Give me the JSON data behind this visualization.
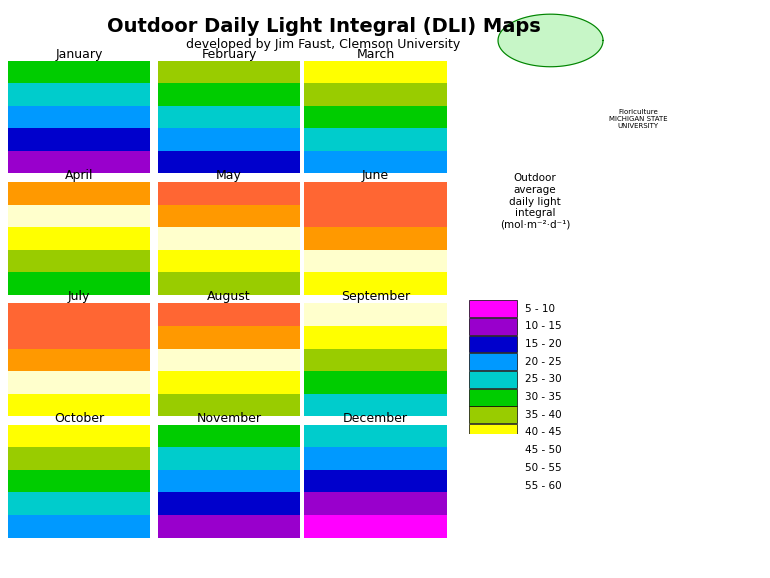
{
  "title": "Outdoor Daily Light Integral (DLI) Maps",
  "subtitle": "developed by Jim Faust, Clemson University",
  "legend_title": "Outdoor\naverage\ndaily light\nintegral\n(mol·m⁻²·d⁻¹)",
  "months": [
    "January",
    "February",
    "March",
    "April",
    "May",
    "June",
    "July",
    "August",
    "September",
    "October",
    "November",
    "December"
  ],
  "dli_ranges": [
    "5 - 10",
    "10 - 15",
    "15 - 20",
    "20 - 25",
    "25 - 30",
    "30 - 35",
    "35 - 40",
    "40 - 45",
    "45 - 50",
    "50 - 55",
    "55 - 60"
  ],
  "dli_colors": [
    "#ff00ff",
    "#9900cc",
    "#0000cc",
    "#0099ff",
    "#00cccc",
    "#00cc00",
    "#99cc00",
    "#ffff00",
    "#ffffcc",
    "#ff9900",
    "#ff6633"
  ],
  "background_color": "#ffffff",
  "title_fontsize": 14,
  "subtitle_fontsize": 9,
  "month_fontsize": 9,
  "legend_fontsize": 8,
  "month_dli_data": {
    "January": {
      "north": 10,
      "upper_mid": 15,
      "lower_mid": 20,
      "south": 25,
      "florida": 30,
      "southwest": 25,
      "northwest": 10
    },
    "February": {
      "north": 15,
      "upper_mid": 20,
      "lower_mid": 25,
      "south": 30,
      "florida": 35,
      "southwest": 30,
      "northwest": 15
    },
    "March": {
      "north": 20,
      "upper_mid": 25,
      "lower_mid": 30,
      "south": 35,
      "florida": 40,
      "southwest": 35,
      "northwest": 25
    },
    "April": {
      "north": 30,
      "upper_mid": 35,
      "lower_mid": 40,
      "south": 45,
      "florida": 45,
      "southwest": 45,
      "northwest": 35
    },
    "May": {
      "north": 35,
      "upper_mid": 40,
      "lower_mid": 45,
      "south": 50,
      "florida": 50,
      "southwest": 55,
      "northwest": 40
    },
    "June": {
      "north": 40,
      "upper_mid": 45,
      "lower_mid": 50,
      "south": 55,
      "florida": 55,
      "southwest": 60,
      "northwest": 45
    },
    "July": {
      "north": 40,
      "upper_mid": 45,
      "lower_mid": 50,
      "south": 55,
      "florida": 50,
      "southwest": 60,
      "northwest": 45
    },
    "August": {
      "north": 35,
      "upper_mid": 40,
      "lower_mid": 45,
      "south": 50,
      "florida": 50,
      "southwest": 55,
      "northwest": 40
    },
    "September": {
      "north": 25,
      "upper_mid": 30,
      "lower_mid": 35,
      "south": 40,
      "florida": 40,
      "southwest": 45,
      "northwest": 30
    },
    "October": {
      "north": 15,
      "upper_mid": 20,
      "lower_mid": 25,
      "south": 30,
      "florida": 35,
      "southwest": 30,
      "northwest": 20
    },
    "November": {
      "north": 10,
      "upper_mid": 15,
      "lower_mid": 20,
      "south": 25,
      "florida": 30,
      "southwest": 25,
      "northwest": 10
    },
    "December": {
      "north": 5,
      "upper_mid": 10,
      "lower_mid": 15,
      "south": 20,
      "florida": 25,
      "southwest": 20,
      "northwest": 5
    }
  }
}
